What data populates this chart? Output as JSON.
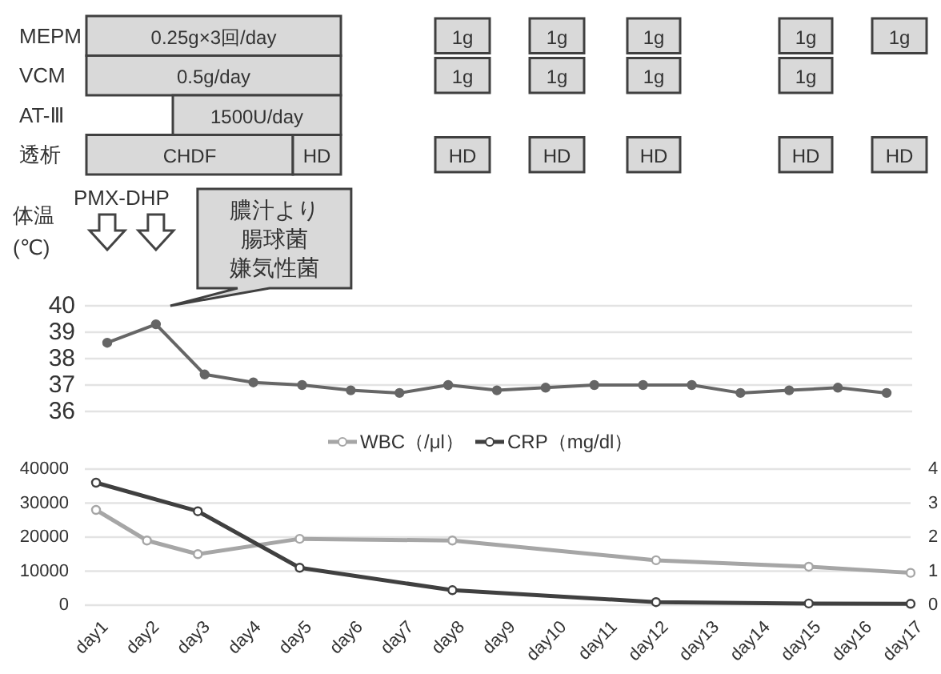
{
  "chart_data": [
    {
      "type": "other",
      "y_categories": [
        "MEPM",
        "VCM",
        "AT-Ⅲ",
        "透析"
      ],
      "annotations": [
        "0.25g×3回/day",
        "1g",
        "1g",
        "1g",
        "1g",
        "1g",
        "0.5g/day",
        "1g",
        "1g",
        "1g",
        "1g",
        "1500U/day",
        "CHDF",
        "HD",
        "HD",
        "HD",
        "HD",
        "HD",
        "HD"
      ]
    },
    {
      "type": "line",
      "ylabel": "体温\n(℃)",
      "categories": [
        null,
        null,
        null,
        null,
        null,
        null,
        null,
        null,
        null,
        null,
        null,
        null,
        null,
        null,
        null,
        null,
        null
      ],
      "ylim": [
        36,
        40
      ],
      "yticks": [
        36,
        37,
        38,
        39,
        40
      ],
      "grid": "y",
      "marker": "circle",
      "annotations": [
        "PMX-DHP",
        "膿汁より",
        "腸球菌",
        "嫌気性菌"
      ],
      "series": [
        {
          "color": "#666666",
          "values": [
            38.6,
            39.3,
            37.4,
            37.1,
            37.0,
            36.8,
            36.7,
            37.0,
            36.8,
            36.9,
            37.0,
            37.0,
            37.0,
            36.7,
            36.8,
            36.9,
            36.7
          ]
        }
      ]
    },
    {
      "type": "line",
      "categories": [
        "day1",
        "day2",
        "day3",
        "day4",
        "day5",
        "day6",
        "day7",
        "day8",
        "day9",
        "day10",
        "day11",
        "day12",
        "day13",
        "day14",
        "day15",
        "day16",
        "day17"
      ],
      "ylim": [
        0,
        40000
      ],
      "yticks": [
        0,
        10000,
        20000,
        30000,
        40000
      ],
      "y2lim": [
        0,
        4
      ],
      "y2ticks": [
        0,
        1,
        2,
        3,
        4
      ],
      "grid": "y",
      "legend": "top",
      "marker": "circle",
      "series": [
        {
          "name": "WBC（/μl）",
          "color": "#a6a6a6",
          "values": [
            28000,
            19000,
            15000,
            null,
            19500,
            null,
            null,
            19000,
            null,
            null,
            null,
            13200,
            null,
            null,
            11300,
            null,
            9500
          ]
        },
        {
          "name": "CRP（mg/dl）",
          "color": "#404040",
          "axis": "y2",
          "values": [
            3.6,
            null,
            2.76,
            null,
            1.1,
            null,
            null,
            0.44,
            null,
            null,
            null,
            0.09,
            null,
            null,
            0.05,
            null,
            0.04
          ]
        }
      ]
    }
  ]
}
